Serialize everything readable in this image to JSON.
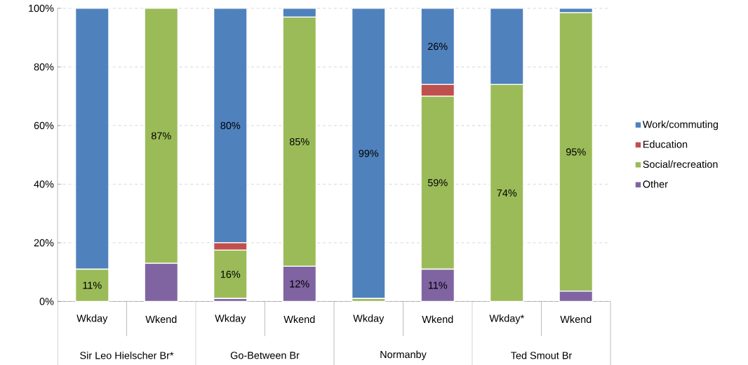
{
  "chart_data": {
    "type": "bar",
    "stacked": true,
    "categories": [
      "Wkday",
      "Wkend",
      "Wkday",
      "Wkend",
      "Wkday",
      "Wkend",
      "Wkday*",
      "Wkend"
    ],
    "annotations": [
      {
        "text": "Sir Leo Hielscher Br*"
      },
      {
        "text": "Go-Between Br"
      },
      {
        "text": "Normanby"
      },
      {
        "text": "Ted Smout Br"
      }
    ],
    "series": [
      {
        "name": "Other",
        "color": "#8064a2",
        "values": [
          0,
          13,
          1,
          12,
          0,
          11,
          0,
          3.5
        ],
        "value_labels": [
          null,
          null,
          null,
          "12%",
          null,
          "11%",
          null,
          null
        ]
      },
      {
        "name": "Social/recreation",
        "color": "#9bbb59",
        "values": [
          11,
          87,
          16.5,
          85,
          1,
          59,
          74,
          95
        ],
        "value_labels": [
          "11%",
          "87%",
          "16%",
          "85%",
          null,
          "59%",
          "74%",
          "95%"
        ]
      },
      {
        "name": "Education",
        "color": "#c0504d",
        "values": [
          0,
          0,
          2.5,
          0,
          0,
          4,
          0,
          0
        ],
        "value_labels": [
          null,
          null,
          null,
          null,
          null,
          null,
          null,
          null
        ]
      },
      {
        "name": "Work/commuting",
        "color": "#4f81bd",
        "values": [
          89,
          0,
          80,
          3,
          99,
          26,
          26,
          1.5
        ],
        "value_labels": [
          null,
          null,
          "80%",
          null,
          "99%",
          "26%",
          null,
          null
        ]
      }
    ],
    "ylim": [
      0,
      100
    ],
    "yticks": [
      {
        "value": 0,
        "label": "0%"
      },
      {
        "value": 20,
        "label": "20%"
      },
      {
        "value": 40,
        "label": "40%"
      },
      {
        "value": 60,
        "label": "60%"
      },
      {
        "value": 80,
        "label": "80%"
      },
      {
        "value": 100,
        "label": "100%"
      }
    ],
    "grid": "y",
    "legend": "right"
  }
}
